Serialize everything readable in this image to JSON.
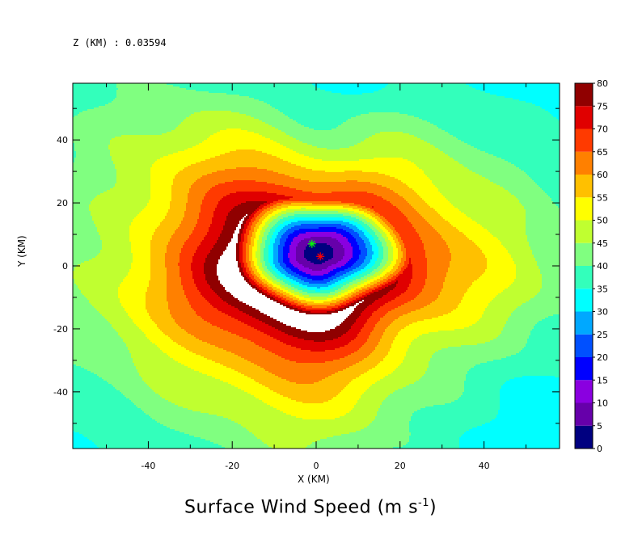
{
  "level": {
    "label": "Z (KM) : 0.03594"
  },
  "chart_data": {
    "type": "heatmap",
    "title": "Surface Wind Speed",
    "title_units": "(m s",
    "title_units_exponent": "-1",
    "title_units_close": ")",
    "xlabel": "X (KM)",
    "ylabel": "Y (KM)",
    "xlim": [
      -58,
      58
    ],
    "ylim": [
      -58,
      58
    ],
    "x_ticks": [
      -40,
      -20,
      0,
      20,
      40
    ],
    "y_ticks": [
      -40,
      -20,
      0,
      20,
      40
    ],
    "colorbar": {
      "levels": [
        0,
        5,
        10,
        15,
        20,
        25,
        30,
        35,
        40,
        45,
        50,
        55,
        60,
        65,
        70,
        75,
        80
      ],
      "colors": [
        "#000080",
        "#6600aa",
        "#8a00e0",
        "#0000ff",
        "#0050ff",
        "#00a8ff",
        "#00ffff",
        "#33ffbb",
        "#80ff80",
        "#c0ff30",
        "#ffff00",
        "#ffc000",
        "#ff8000",
        "#ff3a00",
        "#e00000",
        "#900000"
      ]
    },
    "markers": [
      {
        "name": "green-star",
        "x": -1,
        "y": 7,
        "color": "#00ff00"
      },
      {
        "name": "red-star",
        "x": 1,
        "y": 3,
        "color": "#ff0000"
      }
    ],
    "field": {
      "eye": {
        "x": 0.5,
        "y": 3.5
      },
      "rmw": 21,
      "vmax": 78,
      "inner_width": 9,
      "outer_decay": 30,
      "background": 28,
      "asymmetry_angle_deg": 230,
      "asymmetry_amplitude": 10
    }
  }
}
